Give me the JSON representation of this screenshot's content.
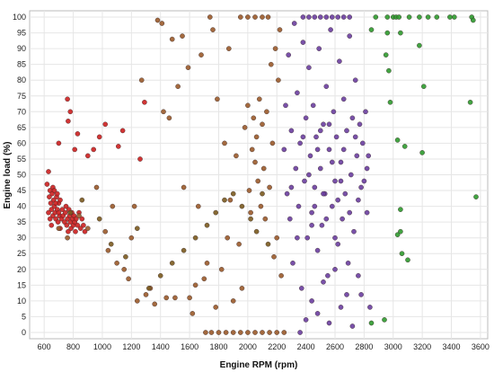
{
  "chart_data": {
    "type": "scatter",
    "xlabel": "Engine RPM (rpm)",
    "ylabel": "Engine load (%)",
    "xlim": [
      500,
      3650
    ],
    "ylim": [
      -2,
      102
    ],
    "x_ticks": [
      600,
      800,
      1000,
      1200,
      1400,
      1600,
      1800,
      2000,
      2200,
      2400,
      2600,
      2800,
      3000,
      3200,
      3400,
      3600
    ],
    "y_ticks": [
      0,
      5,
      10,
      15,
      20,
      25,
      30,
      35,
      40,
      45,
      50,
      55,
      60,
      65,
      70,
      75,
      80,
      85,
      90,
      95,
      100
    ],
    "grid": true,
    "legend": "none",
    "series": [
      {
        "color": "#cc1f1f",
        "points": [
          [
            620,
            47
          ],
          [
            630,
            51
          ],
          [
            635,
            43
          ],
          [
            640,
            45
          ],
          [
            645,
            41
          ],
          [
            650,
            39
          ],
          [
            655,
            44
          ],
          [
            660,
            37
          ],
          [
            665,
            42
          ],
          [
            670,
            40
          ],
          [
            675,
            38
          ],
          [
            680,
            36
          ],
          [
            685,
            43
          ],
          [
            690,
            39
          ],
          [
            695,
            35
          ],
          [
            700,
            41
          ],
          [
            705,
            37
          ],
          [
            710,
            33
          ],
          [
            630,
            38
          ],
          [
            640,
            36
          ],
          [
            650,
            34
          ],
          [
            660,
            46
          ],
          [
            670,
            45
          ],
          [
            680,
            41
          ],
          [
            690,
            44
          ],
          [
            700,
            38
          ],
          [
            710,
            42
          ],
          [
            720,
            36
          ],
          [
            725,
            39
          ],
          [
            730,
            37
          ],
          [
            740,
            35
          ],
          [
            745,
            38
          ],
          [
            750,
            40
          ],
          [
            755,
            34
          ],
          [
            760,
            36
          ],
          [
            765,
            32
          ],
          [
            770,
            39
          ],
          [
            775,
            37
          ],
          [
            780,
            35
          ],
          [
            785,
            33
          ],
          [
            790,
            38
          ],
          [
            795,
            36
          ],
          [
            800,
            34
          ],
          [
            805,
            37
          ],
          [
            810,
            35
          ],
          [
            815,
            32
          ],
          [
            820,
            36
          ],
          [
            830,
            34
          ],
          [
            840,
            38
          ],
          [
            850,
            33
          ],
          [
            860,
            36
          ],
          [
            870,
            34
          ],
          [
            880,
            32
          ],
          [
            760,
            74
          ],
          [
            765,
            67
          ],
          [
            780,
            70
          ],
          [
            810,
            58
          ],
          [
            830,
            63
          ],
          [
            700,
            60
          ],
          [
            900,
            56
          ],
          [
            940,
            58
          ],
          [
            980,
            62
          ],
          [
            1020,
            66
          ],
          [
            1110,
            59
          ],
          [
            1140,
            64
          ],
          [
            1260,
            55
          ],
          [
            1290,
            73
          ]
        ]
      },
      {
        "color": "#9a5a2a",
        "points": [
          [
            700,
            33
          ],
          [
            760,
            30
          ],
          [
            840,
            37
          ],
          [
            900,
            33
          ],
          [
            960,
            46
          ],
          [
            1020,
            32
          ],
          [
            1040,
            26
          ],
          [
            1070,
            40
          ],
          [
            1100,
            22
          ],
          [
            1150,
            20
          ],
          [
            1180,
            17
          ],
          [
            1200,
            30
          ],
          [
            1220,
            40
          ],
          [
            1240,
            10
          ],
          [
            1270,
            80
          ],
          [
            1300,
            12
          ],
          [
            1330,
            14
          ],
          [
            1360,
            9
          ],
          [
            1380,
            99
          ],
          [
            1410,
            98
          ],
          [
            1420,
            70
          ],
          [
            1440,
            11
          ],
          [
            1460,
            68
          ],
          [
            1480,
            93
          ],
          [
            1500,
            11
          ],
          [
            1520,
            78
          ],
          [
            1550,
            94
          ],
          [
            1560,
            46
          ],
          [
            1590,
            84
          ],
          [
            1600,
            11
          ],
          [
            1620,
            6
          ],
          [
            1640,
            15
          ],
          [
            1660,
            40
          ],
          [
            1680,
            88
          ],
          [
            1700,
            17
          ],
          [
            1720,
            22
          ],
          [
            1740,
            100
          ],
          [
            1760,
            96
          ],
          [
            1780,
            8
          ],
          [
            1790,
            74
          ],
          [
            1820,
            20
          ],
          [
            1840,
            60
          ],
          [
            1860,
            30
          ],
          [
            1870,
            90
          ],
          [
            1880,
            42
          ],
          [
            1900,
            10
          ],
          [
            1920,
            56
          ],
          [
            1940,
            28
          ],
          [
            1960,
            14
          ],
          [
            1980,
            65
          ],
          [
            2000,
            72
          ],
          [
            2010,
            45
          ],
          [
            2020,
            38
          ],
          [
            2030,
            58
          ],
          [
            2040,
            68
          ],
          [
            2050,
            54
          ],
          [
            2060,
            62
          ],
          [
            2070,
            48
          ],
          [
            2080,
            74
          ],
          [
            2090,
            40
          ],
          [
            2100,
            66
          ],
          [
            2110,
            52
          ],
          [
            2120,
            36
          ],
          [
            2130,
            70
          ],
          [
            2140,
            100
          ],
          [
            2150,
            46
          ],
          [
            2160,
            85
          ],
          [
            2170,
            60
          ],
          [
            2180,
            24
          ],
          [
            2190,
            90
          ],
          [
            2200,
            30
          ],
          [
            2210,
            80
          ],
          [
            2220,
            96
          ],
          [
            2230,
            18
          ],
          [
            1950,
            100
          ],
          [
            2000,
            100
          ],
          [
            2050,
            100
          ],
          [
            2100,
            100
          ],
          [
            1710,
            0
          ],
          [
            1750,
            0
          ],
          [
            1800,
            0
          ],
          [
            1850,
            0
          ],
          [
            1900,
            0
          ],
          [
            1950,
            0
          ],
          [
            2000,
            0
          ],
          [
            2050,
            0
          ],
          [
            2100,
            0
          ],
          [
            2150,
            0
          ],
          [
            2200,
            0
          ],
          [
            2250,
            0
          ]
        ]
      },
      {
        "color": "#7a5a1e",
        "points": [
          [
            780,
            38
          ],
          [
            860,
            42
          ],
          [
            980,
            36
          ],
          [
            1060,
            28
          ],
          [
            1160,
            24
          ],
          [
            1240,
            33
          ],
          [
            1320,
            14
          ],
          [
            1400,
            18
          ],
          [
            1480,
            22
          ],
          [
            1560,
            26
          ],
          [
            1640,
            30
          ],
          [
            1720,
            34
          ],
          [
            1780,
            38
          ],
          [
            1840,
            42
          ],
          [
            1900,
            44
          ],
          [
            1960,
            40
          ],
          [
            2020,
            36
          ],
          [
            2060,
            32
          ],
          [
            2100,
            44
          ],
          [
            2140,
            28
          ]
        ]
      },
      {
        "color": "#6a3ea0",
        "points": [
          [
            2250,
            58
          ],
          [
            2260,
            72
          ],
          [
            2270,
            44
          ],
          [
            2280,
            88
          ],
          [
            2290,
            36
          ],
          [
            2300,
            64
          ],
          [
            2310,
            22
          ],
          [
            2320,
            98
          ],
          [
            2330,
            52
          ],
          [
            2340,
            76
          ],
          [
            2350,
            40
          ],
          [
            2360,
            60
          ],
          [
            2370,
            14
          ],
          [
            2380,
            92
          ],
          [
            2390,
            48
          ],
          [
            2400,
            68
          ],
          [
            2410,
            30
          ],
          [
            2420,
            84
          ],
          [
            2430,
            56
          ],
          [
            2440,
            38
          ],
          [
            2450,
            72
          ],
          [
            2460,
            46
          ],
          [
            2470,
            62
          ],
          [
            2480,
            26
          ],
          [
            2490,
            90
          ],
          [
            2500,
            52
          ],
          [
            2510,
            34
          ],
          [
            2520,
            66
          ],
          [
            2530,
            44
          ],
          [
            2540,
            78
          ],
          [
            2550,
            18
          ],
          [
            2560,
            58
          ],
          [
            2570,
            96
          ],
          [
            2580,
            40
          ],
          [
            2590,
            70
          ],
          [
            2600,
            48
          ],
          [
            2610,
            62
          ],
          [
            2620,
            28
          ],
          [
            2630,
            86
          ],
          [
            2640,
            54
          ],
          [
            2650,
            36
          ],
          [
            2660,
            74
          ],
          [
            2670,
            44
          ],
          [
            2680,
            64
          ],
          [
            2690,
            22
          ],
          [
            2700,
            94
          ],
          [
            2710,
            50
          ],
          [
            2720,
            68
          ],
          [
            2730,
            32
          ],
          [
            2740,
            80
          ],
          [
            2750,
            56
          ],
          [
            2760,
            42
          ],
          [
            2770,
            66
          ],
          [
            2780,
            12
          ],
          [
            2790,
            60
          ],
          [
            2800,
            48
          ],
          [
            2810,
            70
          ],
          [
            2820,
            38
          ],
          [
            2830,
            56
          ],
          [
            2840,
            8
          ],
          [
            2380,
            100
          ],
          [
            2420,
            100
          ],
          [
            2460,
            100
          ],
          [
            2500,
            100
          ],
          [
            2540,
            100
          ],
          [
            2580,
            100
          ],
          [
            2620,
            100
          ],
          [
            2660,
            100
          ],
          [
            2700,
            100
          ],
          [
            2360,
            0
          ],
          [
            2400,
            4
          ],
          [
            2440,
            10
          ],
          [
            2480,
            6
          ],
          [
            2520,
            16
          ],
          [
            2560,
            3
          ],
          [
            2600,
            20
          ],
          [
            2640,
            8
          ],
          [
            2680,
            12
          ],
          [
            2720,
            2
          ],
          [
            2760,
            18
          ],
          [
            2300,
            46
          ],
          [
            2340,
            30
          ],
          [
            2380,
            62
          ],
          [
            2420,
            50
          ],
          [
            2460,
            40
          ],
          [
            2500,
            64
          ],
          [
            2540,
            36
          ],
          [
            2580,
            54
          ],
          [
            2620,
            42
          ],
          [
            2660,
            58
          ],
          [
            2700,
            38
          ],
          [
            2740,
            62
          ],
          [
            2780,
            46
          ],
          [
            2820,
            52
          ],
          [
            2440,
            34
          ],
          [
            2480,
            58
          ],
          [
            2520,
            44
          ],
          [
            2560,
            66
          ],
          [
            2600,
            30
          ],
          [
            2640,
            48
          ]
        ]
      },
      {
        "color": "#2e9a2e",
        "points": [
          [
            2850,
            96
          ],
          [
            2880,
            100
          ],
          [
            2960,
            100
          ],
          [
            3000,
            100
          ],
          [
            3020,
            100
          ],
          [
            3040,
            100
          ],
          [
            3110,
            100
          ],
          [
            3180,
            100
          ],
          [
            3240,
            100
          ],
          [
            3300,
            100
          ],
          [
            3390,
            100
          ],
          [
            3420,
            100
          ],
          [
            3540,
            100
          ],
          [
            3550,
            99
          ],
          [
            2960,
            95
          ],
          [
            3050,
            95
          ],
          [
            2950,
            88
          ],
          [
            2970,
            83
          ],
          [
            3180,
            91
          ],
          [
            3210,
            78
          ],
          [
            2980,
            73
          ],
          [
            3530,
            73
          ],
          [
            3030,
            61
          ],
          [
            3080,
            59
          ],
          [
            3200,
            57
          ],
          [
            3570,
            43
          ],
          [
            3050,
            39
          ],
          [
            3030,
            31
          ],
          [
            3050,
            32
          ],
          [
            3060,
            25
          ],
          [
            3100,
            23
          ],
          [
            2850,
            3
          ],
          [
            2940,
            4
          ]
        ]
      }
    ]
  }
}
